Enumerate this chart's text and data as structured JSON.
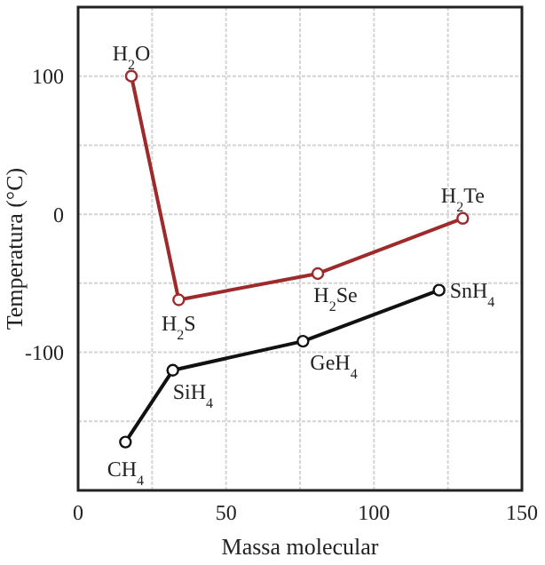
{
  "chart_data": {
    "type": "line",
    "xlabel": "Massa molecular",
    "ylabel": "Temperatura (°C)",
    "xlim": [
      0,
      150
    ],
    "xticks": [
      0,
      {
        "value": 25,
        "label": null
      },
      50,
      {
        "value": 75,
        "label": null
      },
      100,
      {
        "value": 125,
        "label": null
      },
      150
    ],
    "ylim": [
      -200,
      150
    ],
    "yticks": [
      {
        "value": -200,
        "label": null
      },
      {
        "value": -150,
        "label": null
      },
      -100,
      {
        "value": -50,
        "label": null
      },
      0,
      {
        "value": 50,
        "label": null
      },
      100,
      {
        "value": 150,
        "label": null
      }
    ],
    "grid": true,
    "marker": "circle",
    "line_style": "solid",
    "series": [
      {
        "color": "#9e2a2b",
        "x": [
          18,
          34,
          81,
          130
        ],
        "values": [
          100,
          -62,
          -43,
          -3
        ]
      },
      {
        "color": "#111111",
        "x": [
          16,
          32,
          76,
          122
        ],
        "values": [
          -165,
          -113,
          -92,
          -55
        ]
      }
    ],
    "annotations": [
      {
        "text": "H$_{2}$O",
        "x": 18,
        "y": 100
      },
      {
        "text": "H$_{2}$S",
        "x": 34,
        "y": -62
      },
      {
        "text": "H$_{2}$Se",
        "x": 81,
        "y": -43
      },
      {
        "text": "H$_{2}$Te",
        "x": 130,
        "y": -3
      },
      {
        "text": "CH$_{4}$",
        "x": 16,
        "y": -165
      },
      {
        "text": "SiH$_{4}$",
        "x": 32,
        "y": -113
      },
      {
        "text": "GeH$_{4}$",
        "x": 76,
        "y": -92
      },
      {
        "text": "SnH$_{4}$",
        "x": 122,
        "y": -55
      }
    ]
  }
}
